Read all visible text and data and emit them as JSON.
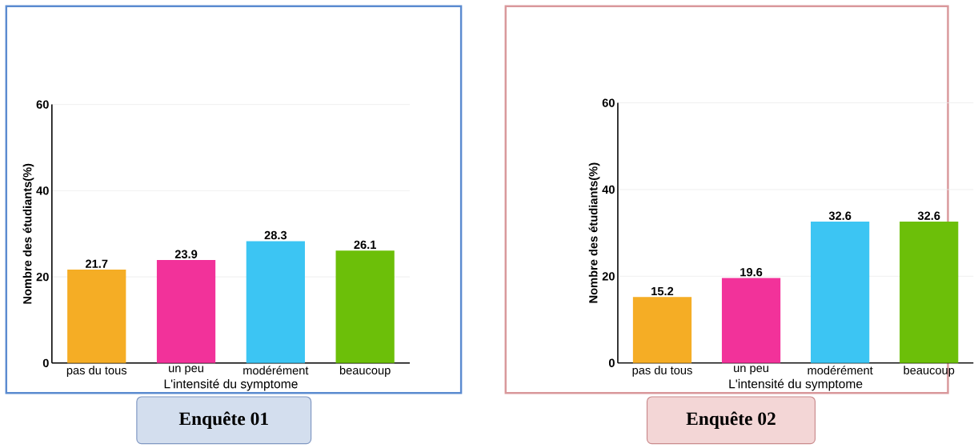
{
  "chart_data": [
    {
      "type": "bar",
      "title": "Enquête 01",
      "xlabel": "L'intensité du symptome",
      "ylabel": "Nombre des étudiants(%)",
      "categories": [
        "pas du tous",
        "un peu",
        "modérément",
        "beaucoup"
      ],
      "values": [
        21.7,
        23.9,
        28.3,
        26.1
      ],
      "colors": [
        "#f5ad25",
        "#f2329a",
        "#3cc5f3",
        "#6cbf09"
      ],
      "ylim": [
        0,
        60
      ],
      "yticks": [
        0,
        20,
        40,
        60
      ],
      "grid": "y",
      "data_labels": true
    },
    {
      "type": "bar",
      "title": "Enquête 02",
      "xlabel": "L'intensité du symptome",
      "ylabel": "Nombre des étudiants(%)",
      "categories": [
        "pas du tous",
        "un peu",
        "modérément",
        "beaucoup"
      ],
      "values": [
        15.2,
        19.6,
        32.6,
        32.6
      ],
      "colors": [
        "#f5ad25",
        "#f2329a",
        "#3cc5f3",
        "#6cbf09"
      ],
      "ylim": [
        0,
        60
      ],
      "yticks": [
        0,
        20,
        40,
        60
      ],
      "grid": "y",
      "data_labels": true
    }
  ]
}
